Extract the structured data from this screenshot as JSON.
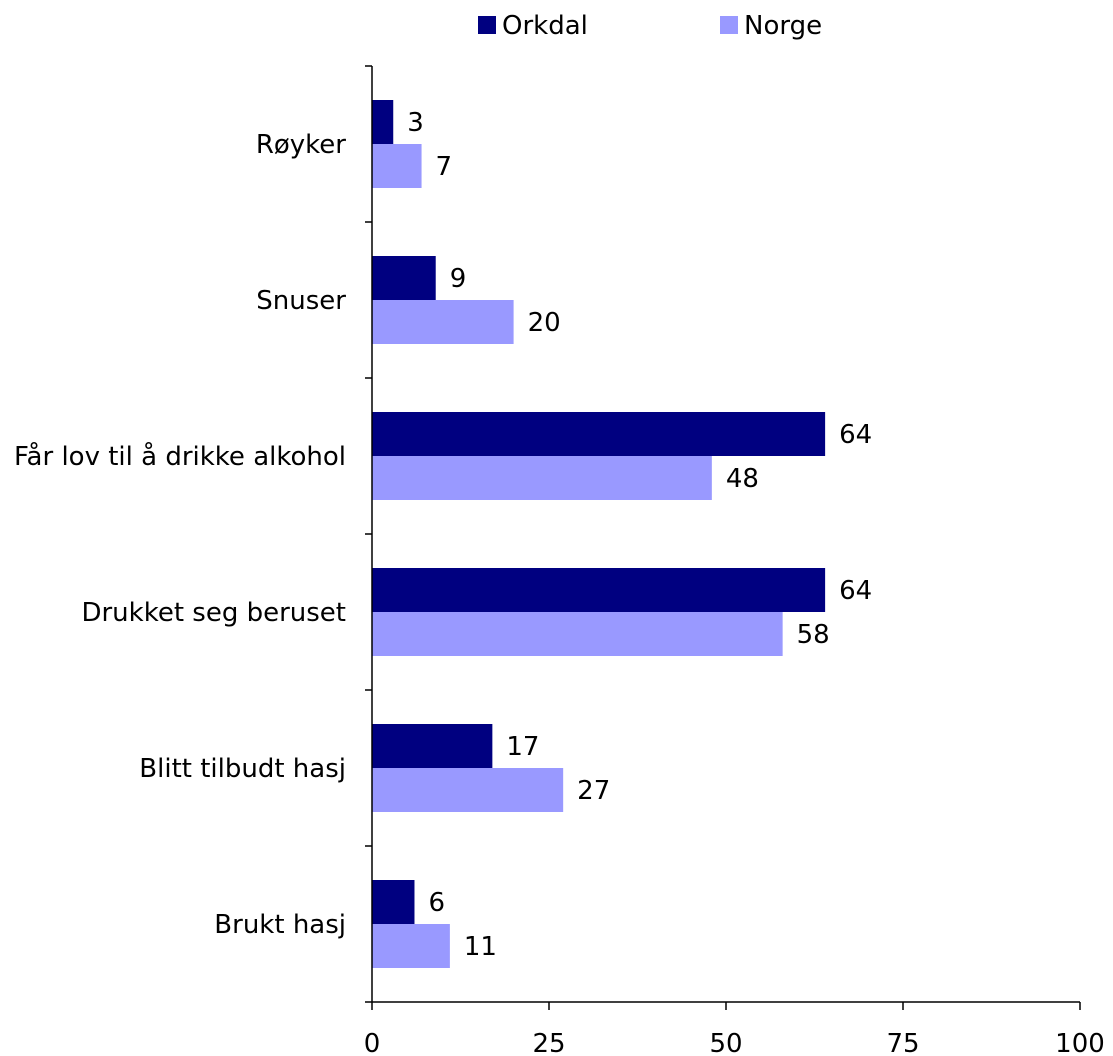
{
  "chart_data": {
    "type": "bar",
    "orientation": "horizontal",
    "categories": [
      "Røyker",
      "Snuser",
      "Får lov til å drikke alkohol",
      "Drukket seg beruset",
      "Blitt tilbudt hasj",
      "Brukt hasj"
    ],
    "series": [
      {
        "name": "Orkdal",
        "color": "#000080",
        "values": [
          3,
          9,
          64,
          64,
          17,
          6
        ]
      },
      {
        "name": "Norge",
        "color": "#9999ff",
        "values": [
          7,
          20,
          48,
          58,
          27,
          11
        ]
      }
    ],
    "xlim": [
      0,
      100
    ],
    "xticks": [
      "0",
      "25",
      "50",
      "75",
      "100"
    ],
    "legend_position": "top",
    "grid": false
  }
}
